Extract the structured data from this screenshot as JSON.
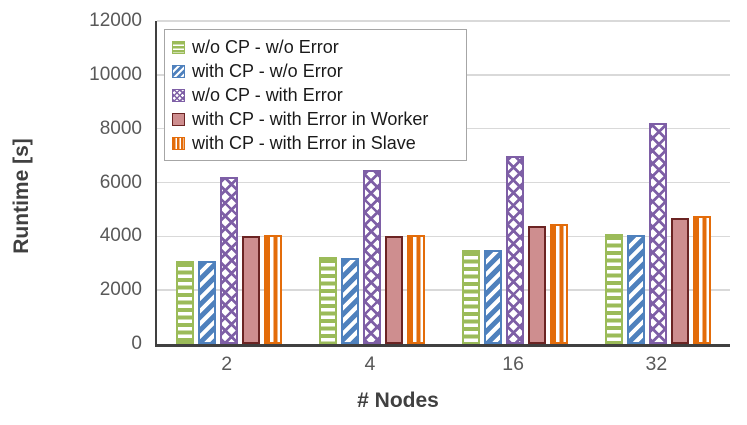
{
  "chart_data": {
    "type": "bar",
    "title": "",
    "xlabel": "# Nodes",
    "ylabel": "Runtime [s]",
    "ylim": [
      0,
      12000
    ],
    "yticks": [
      0,
      2000,
      4000,
      6000,
      8000,
      10000,
      12000
    ],
    "grid": true,
    "legend_position": "inside top-left",
    "categories": [
      "2",
      "4",
      "16",
      "32"
    ],
    "series": [
      {
        "name": "w/o CP - w/o Error",
        "pattern": "horizontal-stripes",
        "color": "#9BBB59",
        "values": [
          3100,
          3250,
          3500,
          4100
        ]
      },
      {
        "name": "with CP - w/o Error",
        "pattern": "diagonal-stripes",
        "color": "#4F81BD",
        "values": [
          3100,
          3200,
          3500,
          4050
        ]
      },
      {
        "name": "w/o CP - with Error",
        "pattern": "crosshatch",
        "color": "#7E5FA6",
        "values": [
          6200,
          6450,
          7000,
          8200
        ]
      },
      {
        "name": "with CP - with Error in Worker",
        "pattern": "solid",
        "color": "#CE8E8F",
        "border_color": "#6B2423",
        "values": [
          4000,
          4000,
          4400,
          4700
        ]
      },
      {
        "name": "with CP - with Error in Slave",
        "pattern": "vertical-stripes",
        "color": "#E36C0A",
        "values": [
          4050,
          4050,
          4450,
          4750
        ]
      }
    ],
    "colors": {
      "grid": "#D9D9D9",
      "axis": "#404040",
      "tick_labels": "#595959",
      "axis_titles": "#404040",
      "legend_border": "#A6A6A6",
      "background": "#FFFFFF"
    }
  }
}
